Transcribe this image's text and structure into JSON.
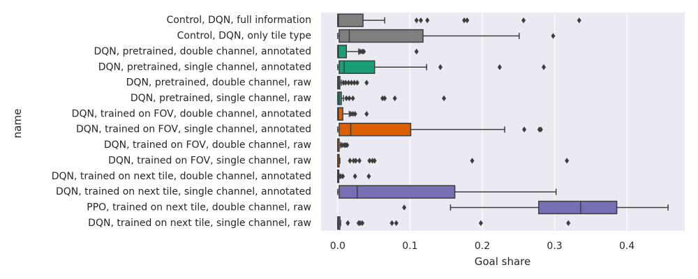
{
  "chart_data": {
    "type": "boxplot",
    "orientation": "horizontal",
    "xlabel": "Goal share",
    "ylabel": "name",
    "xlim": [
      -0.023,
      0.48
    ],
    "xticks": [
      0.0,
      0.1,
      0.2,
      0.3,
      0.4
    ],
    "xtick_labels": [
      "0.0",
      "0.1",
      "0.2",
      "0.3",
      "0.4"
    ],
    "grid": true,
    "categories": [
      "Control, DQN, full information",
      "Control, DQN, only tile type",
      "DQN, pretrained, double channel, annotated",
      "DQN, pretrained, single channel, annotated",
      "DQN, pretrained, double channel, raw",
      "DQN, pretrained, single channel, raw",
      "DQN, trained on FOV, double channel, annotated",
      "DQN, trained on FOV, single channel, annotated",
      "DQN, trained on FOV, double channel, raw",
      "DQN, trained on FOV, single channel, raw",
      "DQN, trained on next tile, double channel, annotated",
      "DQN, trained on next tile, single channel, annotated",
      "PPO, trained on next tile, double channel, raw",
      "DQN, trained on next tile, single channel, raw"
    ],
    "colors": [
      "#7f7f7f",
      "#7f7f7f",
      "#1b9e77",
      "#1b9e77",
      "#1b9e77",
      "#1b9e77",
      "#d95f02",
      "#d95f02",
      "#d95f02",
      "#d95f02",
      "#7570b3",
      "#7570b3",
      "#7570b3",
      "#7570b3"
    ],
    "boxes": [
      {
        "whislo": 0.0,
        "q1": 0.0,
        "med": 0.001,
        "q3": 0.035,
        "whishi": 0.065,
        "fliers": [
          0.109,
          0.115,
          0.124,
          0.175,
          0.179,
          0.257,
          0.334
        ]
      },
      {
        "whislo": 0.0,
        "q1": 0.002,
        "med": 0.016,
        "q3": 0.118,
        "whishi": 0.251,
        "fliers": [
          0.298
        ]
      },
      {
        "whislo": 0.0,
        "q1": 0.0,
        "med": 0.001,
        "q3": 0.012,
        "whishi": 0.029,
        "fliers": [
          0.031,
          0.034,
          0.036,
          0.109
        ]
      },
      {
        "whislo": 0.0,
        "q1": 0.002,
        "med": 0.009,
        "q3": 0.051,
        "whishi": 0.123,
        "fliers": [
          0.142,
          0.224,
          0.285
        ]
      },
      {
        "whislo": 0.0,
        "q1": 0.0,
        "med": 0.001,
        "q3": 0.003,
        "whishi": 0.005,
        "fliers": [
          0.008,
          0.011,
          0.015,
          0.019,
          0.023,
          0.027,
          0.04
        ]
      },
      {
        "whislo": 0.0,
        "q1": 0.0,
        "med": 0.002,
        "q3": 0.005,
        "whishi": 0.008,
        "fliers": [
          0.012,
          0.016,
          0.021,
          0.062,
          0.065,
          0.079,
          0.147
        ]
      },
      {
        "whislo": 0.0,
        "q1": 0.0,
        "med": 0.001,
        "q3": 0.007,
        "whishi": 0.016,
        "fliers": [
          0.018,
          0.021,
          0.024,
          0.04
        ]
      },
      {
        "whislo": 0.0,
        "q1": 0.002,
        "med": 0.018,
        "q3": 0.101,
        "whishi": 0.231,
        "fliers": [
          0.258,
          0.279,
          0.281
        ]
      },
      {
        "whislo": 0.0,
        "q1": 0.0,
        "med": 0.0,
        "q3": 0.002,
        "whishi": 0.004,
        "fliers": [
          0.006,
          0.009,
          0.011,
          0.013
        ]
      },
      {
        "whislo": 0.0,
        "q1": 0.0,
        "med": 0.0,
        "q3": 0.002,
        "whishi": 0.003,
        "fliers": [
          0.017,
          0.022,
          0.025,
          0.03,
          0.044,
          0.048,
          0.051,
          0.186,
          0.317
        ]
      },
      {
        "whislo": 0.0,
        "q1": 0.0,
        "med": 0.0,
        "q3": 0.001,
        "whishi": 0.002,
        "fliers": [
          0.004,
          0.007,
          0.024,
          0.043
        ]
      },
      {
        "whislo": 0.0,
        "q1": 0.002,
        "med": 0.027,
        "q3": 0.162,
        "whishi": 0.302,
        "fliers": []
      },
      {
        "whislo": 0.156,
        "q1": 0.278,
        "med": 0.336,
        "q3": 0.386,
        "whishi": 0.457,
        "fliers": [
          0.092
        ]
      },
      {
        "whislo": 0.0,
        "q1": 0.0,
        "med": 0.001,
        "q3": 0.003,
        "whishi": 0.004,
        "fliers": [
          0.014,
          0.029,
          0.031,
          0.034,
          0.075,
          0.081,
          0.198,
          0.319
        ]
      }
    ]
  }
}
